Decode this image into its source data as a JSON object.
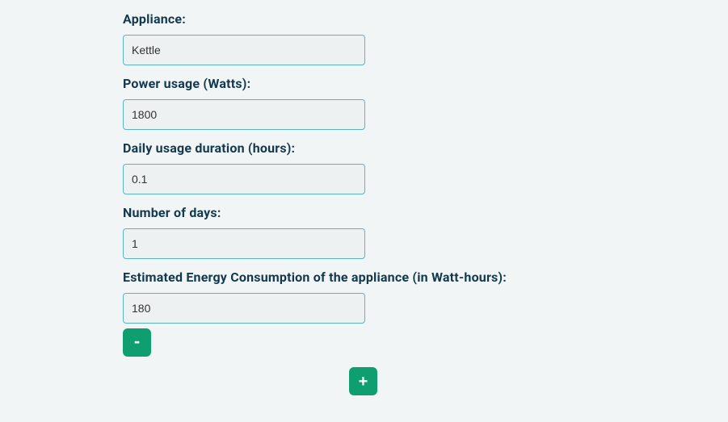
{
  "form": {
    "appliance": {
      "label": "Appliance:",
      "value": "Kettle"
    },
    "power": {
      "label": "Power usage (Watts):",
      "value": "1800"
    },
    "duration": {
      "label": "Daily usage duration (hours):",
      "value": "0.1"
    },
    "days": {
      "label": "Number of days:",
      "value": "1"
    },
    "consumption": {
      "label": "Estimated Energy Consumption of the appliance (in Watt-hours):",
      "value": "180"
    }
  },
  "buttons": {
    "remove": "-",
    "add": "+"
  },
  "colors": {
    "page_background": "#f2f5f6",
    "label_text": "#12394d",
    "input_background": "#eef1f2",
    "input_border": "#5ab3c4",
    "input_text": "#333333",
    "button_background": "#0e9e6f",
    "button_text": "#ffffff"
  }
}
